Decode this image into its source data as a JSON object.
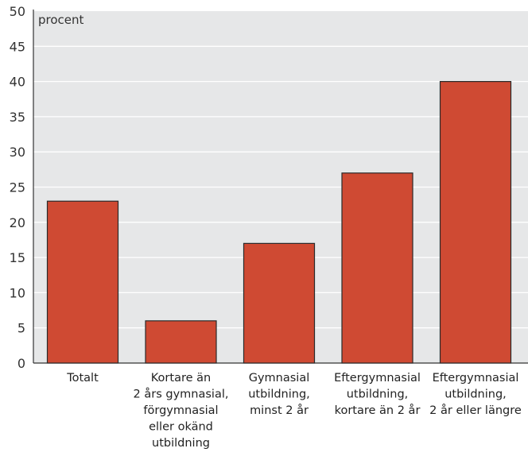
{
  "chart_data": {
    "type": "bar",
    "ylabel": "procent",
    "ylim": [
      0,
      50
    ],
    "yticks": [
      0,
      5,
      10,
      15,
      20,
      25,
      30,
      35,
      40,
      45,
      50
    ],
    "grid": true,
    "categories": [
      [
        "Totalt"
      ],
      [
        "Kortare än",
        "2 års gymnasial,",
        "förgymnasial",
        "eller okänd",
        "utbildning"
      ],
      [
        "Gymnasial",
        "utbildning,",
        "minst 2 år"
      ],
      [
        "Eftergymnasial",
        "utbildning,",
        "kortare än 2 år"
      ],
      [
        "Eftergymnasial",
        "utbildning,",
        "2 år eller längre"
      ]
    ],
    "values": [
      23,
      6,
      17,
      27,
      40
    ],
    "colors": {
      "bar": "#cf4a33",
      "plot_bg": "#e6e7e8",
      "grid": "#ffffff",
      "axis": "#333333"
    }
  }
}
